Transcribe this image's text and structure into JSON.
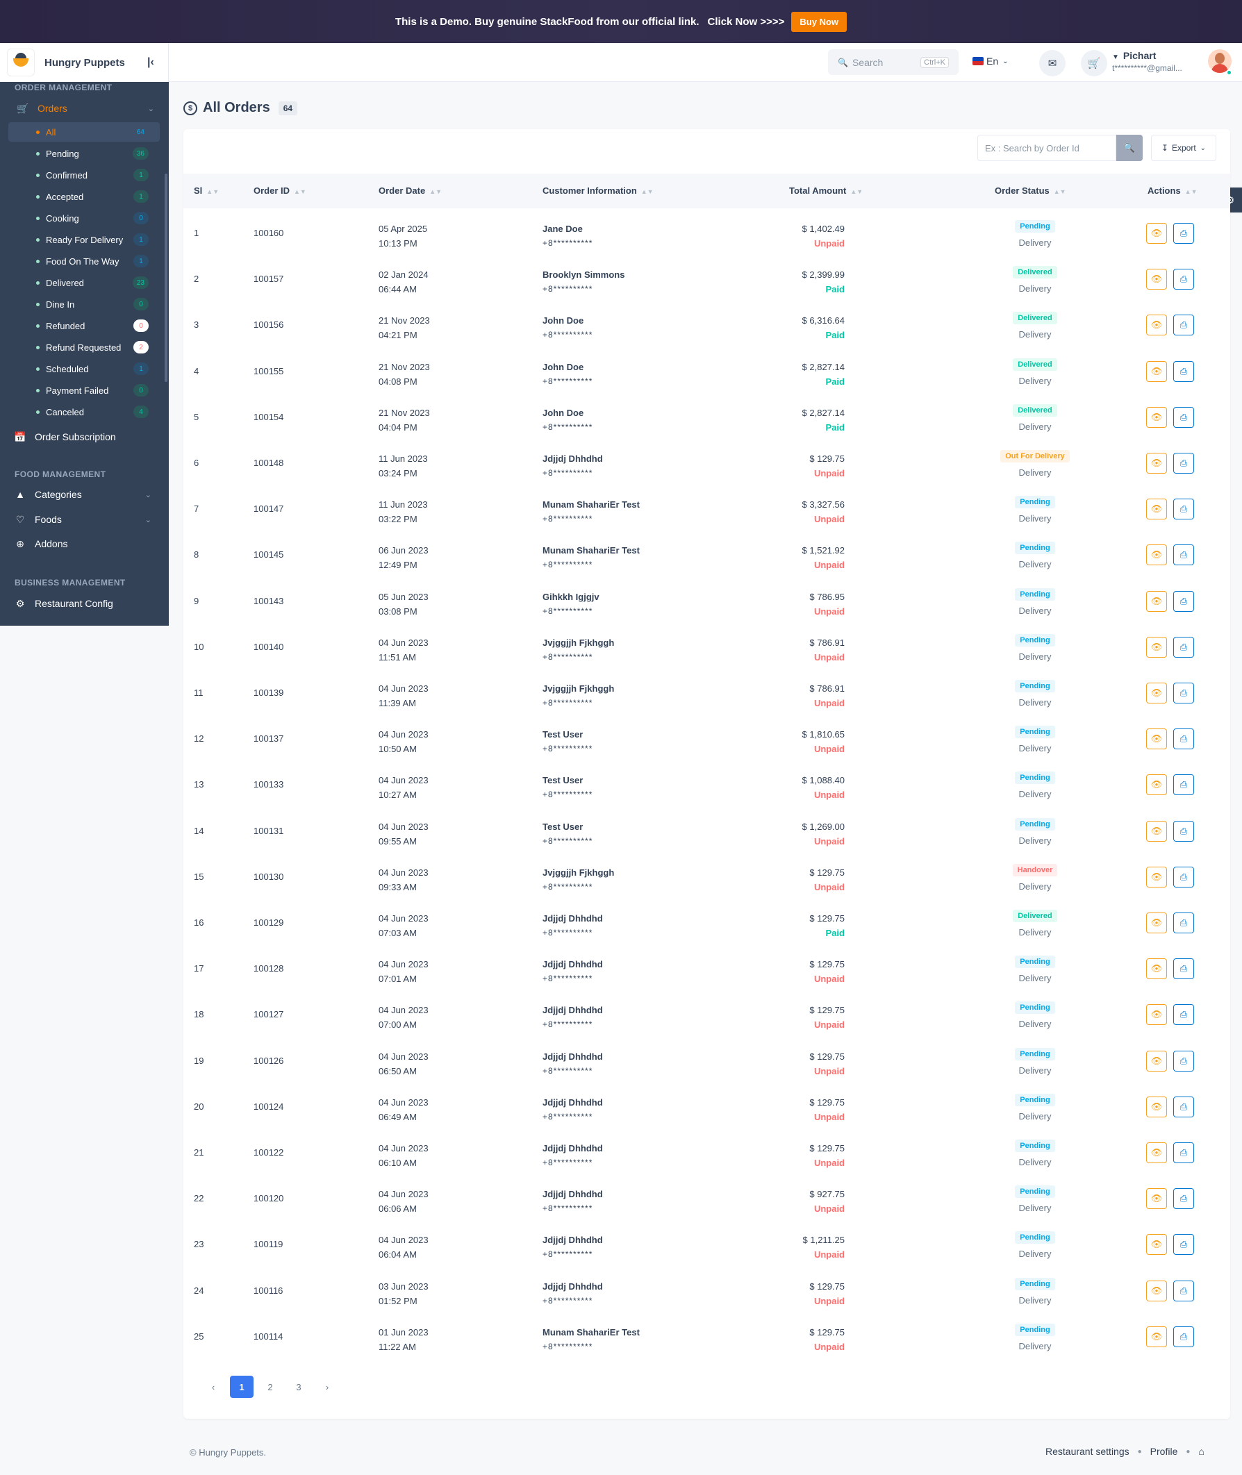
{
  "banner": {
    "message": "This is a Demo. Buy genuine StackFood from our official link.",
    "click_now": "Click Now >>>>",
    "buy_now": "Buy Now"
  },
  "brand": {
    "name": "Hungry Puppets"
  },
  "header": {
    "search_placeholder": "Search",
    "search_shortcut": "Ctrl+K",
    "language": "En",
    "user_name": "Pichart",
    "user_email": "t**********@gmail..."
  },
  "sidebar": {
    "order_management": "ORDER MANAGEMENT",
    "orders": "Orders",
    "subitems": [
      {
        "label": "All",
        "count": "64"
      },
      {
        "label": "Pending",
        "count": "36"
      },
      {
        "label": "Confirmed",
        "count": "1"
      },
      {
        "label": "Accepted",
        "count": "1"
      },
      {
        "label": "Cooking",
        "count": "0"
      },
      {
        "label": "Ready For Delivery",
        "count": "1"
      },
      {
        "label": "Food On The Way",
        "count": "1"
      },
      {
        "label": "Delivered",
        "count": "23"
      },
      {
        "label": "Dine In",
        "count": "0"
      },
      {
        "label": "Refunded",
        "count": "0"
      },
      {
        "label": "Refund Requested",
        "count": "2"
      },
      {
        "label": "Scheduled",
        "count": "1"
      },
      {
        "label": "Payment Failed",
        "count": "0"
      },
      {
        "label": "Canceled",
        "count": "4"
      }
    ],
    "order_subscription": "Order Subscription",
    "food_management": "FOOD MANAGEMENT",
    "categories": "Categories",
    "foods": "Foods",
    "addons": "Addons",
    "business_management": "BUSINESS MANAGEMENT",
    "restaurant_config": "Restaurant Config"
  },
  "page": {
    "title": "All Orders",
    "count": "64",
    "order_search_placeholder": "Ex : Search by Order Id",
    "export": "Export"
  },
  "table": {
    "headers": {
      "sl": "Sl",
      "order_id": "Order ID",
      "order_date": "Order Date",
      "customer": "Customer Information",
      "total": "Total Amount",
      "status": "Order Status",
      "actions": "Actions"
    },
    "rows": [
      {
        "sl": "1",
        "id": "100160",
        "date": "05 Apr 2025",
        "time": "10:13 PM",
        "name": "Jane Doe",
        "phone": "+8**********",
        "amount": "$ 1,402.49",
        "pay": "Unpaid",
        "status": "Pending",
        "type": "Delivery"
      },
      {
        "sl": "2",
        "id": "100157",
        "date": "02 Jan 2024",
        "time": "06:44 AM",
        "name": "Brooklyn Simmons",
        "phone": "+8**********",
        "amount": "$ 2,399.99",
        "pay": "Paid",
        "status": "Delivered",
        "type": "Delivery"
      },
      {
        "sl": "3",
        "id": "100156",
        "date": "21 Nov 2023",
        "time": "04:21 PM",
        "name": "John Doe",
        "phone": "+8**********",
        "amount": "$ 6,316.64",
        "pay": "Paid",
        "status": "Delivered",
        "type": "Delivery"
      },
      {
        "sl": "4",
        "id": "100155",
        "date": "21 Nov 2023",
        "time": "04:08 PM",
        "name": "John Doe",
        "phone": "+8**********",
        "amount": "$ 2,827.14",
        "pay": "Paid",
        "status": "Delivered",
        "type": "Delivery"
      },
      {
        "sl": "5",
        "id": "100154",
        "date": "21 Nov 2023",
        "time": "04:04 PM",
        "name": "John Doe",
        "phone": "+8**********",
        "amount": "$ 2,827.14",
        "pay": "Paid",
        "status": "Delivered",
        "type": "Delivery"
      },
      {
        "sl": "6",
        "id": "100148",
        "date": "11 Jun 2023",
        "time": "03:24 PM",
        "name": "Jdjjdj Dhhdhd",
        "phone": "+8**********",
        "amount": "$ 129.75",
        "pay": "Unpaid",
        "status": "Out For Delivery",
        "type": "Delivery"
      },
      {
        "sl": "7",
        "id": "100147",
        "date": "11 Jun 2023",
        "time": "03:22 PM",
        "name": "Munam ShahariEr Test",
        "phone": "+8**********",
        "amount": "$ 3,327.56",
        "pay": "Unpaid",
        "status": "Pending",
        "type": "Delivery"
      },
      {
        "sl": "8",
        "id": "100145",
        "date": "06 Jun 2023",
        "time": "12:49 PM",
        "name": "Munam ShahariEr Test",
        "phone": "+8**********",
        "amount": "$ 1,521.92",
        "pay": "Unpaid",
        "status": "Pending",
        "type": "Delivery"
      },
      {
        "sl": "9",
        "id": "100143",
        "date": "05 Jun 2023",
        "time": "03:08 PM",
        "name": "Gihkkh Igjgjv",
        "phone": "+8**********",
        "amount": "$ 786.95",
        "pay": "Unpaid",
        "status": "Pending",
        "type": "Delivery"
      },
      {
        "sl": "10",
        "id": "100140",
        "date": "04 Jun 2023",
        "time": "11:51 AM",
        "name": "Jvjggjjh Fjkhggh",
        "phone": "+8**********",
        "amount": "$ 786.91",
        "pay": "Unpaid",
        "status": "Pending",
        "type": "Delivery"
      },
      {
        "sl": "11",
        "id": "100139",
        "date": "04 Jun 2023",
        "time": "11:39 AM",
        "name": "Jvjggjjh Fjkhggh",
        "phone": "+8**********",
        "amount": "$ 786.91",
        "pay": "Unpaid",
        "status": "Pending",
        "type": "Delivery"
      },
      {
        "sl": "12",
        "id": "100137",
        "date": "04 Jun 2023",
        "time": "10:50 AM",
        "name": "Test User",
        "phone": "+8**********",
        "amount": "$ 1,810.65",
        "pay": "Unpaid",
        "status": "Pending",
        "type": "Delivery"
      },
      {
        "sl": "13",
        "id": "100133",
        "date": "04 Jun 2023",
        "time": "10:27 AM",
        "name": "Test User",
        "phone": "+8**********",
        "amount": "$ 1,088.40",
        "pay": "Unpaid",
        "status": "Pending",
        "type": "Delivery"
      },
      {
        "sl": "14",
        "id": "100131",
        "date": "04 Jun 2023",
        "time": "09:55 AM",
        "name": "Test User",
        "phone": "+8**********",
        "amount": "$ 1,269.00",
        "pay": "Unpaid",
        "status": "Pending",
        "type": "Delivery"
      },
      {
        "sl": "15",
        "id": "100130",
        "date": "04 Jun 2023",
        "time": "09:33 AM",
        "name": "Jvjggjjh Fjkhggh",
        "phone": "+8**********",
        "amount": "$ 129.75",
        "pay": "Unpaid",
        "status": "Handover",
        "type": "Delivery"
      },
      {
        "sl": "16",
        "id": "100129",
        "date": "04 Jun 2023",
        "time": "07:03 AM",
        "name": "Jdjjdj Dhhdhd",
        "phone": "+8**********",
        "amount": "$ 129.75",
        "pay": "Paid",
        "status": "Delivered",
        "type": "Delivery"
      },
      {
        "sl": "17",
        "id": "100128",
        "date": "04 Jun 2023",
        "time": "07:01 AM",
        "name": "Jdjjdj Dhhdhd",
        "phone": "+8**********",
        "amount": "$ 129.75",
        "pay": "Unpaid",
        "status": "Pending",
        "type": "Delivery"
      },
      {
        "sl": "18",
        "id": "100127",
        "date": "04 Jun 2023",
        "time": "07:00 AM",
        "name": "Jdjjdj Dhhdhd",
        "phone": "+8**********",
        "amount": "$ 129.75",
        "pay": "Unpaid",
        "status": "Pending",
        "type": "Delivery"
      },
      {
        "sl": "19",
        "id": "100126",
        "date": "04 Jun 2023",
        "time": "06:50 AM",
        "name": "Jdjjdj Dhhdhd",
        "phone": "+8**********",
        "amount": "$ 129.75",
        "pay": "Unpaid",
        "status": "Pending",
        "type": "Delivery"
      },
      {
        "sl": "20",
        "id": "100124",
        "date": "04 Jun 2023",
        "time": "06:49 AM",
        "name": "Jdjjdj Dhhdhd",
        "phone": "+8**********",
        "amount": "$ 129.75",
        "pay": "Unpaid",
        "status": "Pending",
        "type": "Delivery"
      },
      {
        "sl": "21",
        "id": "100122",
        "date": "04 Jun 2023",
        "time": "06:10 AM",
        "name": "Jdjjdj Dhhdhd",
        "phone": "+8**********",
        "amount": "$ 129.75",
        "pay": "Unpaid",
        "status": "Pending",
        "type": "Delivery"
      },
      {
        "sl": "22",
        "id": "100120",
        "date": "04 Jun 2023",
        "time": "06:06 AM",
        "name": "Jdjjdj Dhhdhd",
        "phone": "+8**********",
        "amount": "$ 927.75",
        "pay": "Unpaid",
        "status": "Pending",
        "type": "Delivery"
      },
      {
        "sl": "23",
        "id": "100119",
        "date": "04 Jun 2023",
        "time": "06:04 AM",
        "name": "Jdjjdj Dhhdhd",
        "phone": "+8**********",
        "amount": "$ 1,211.25",
        "pay": "Unpaid",
        "status": "Pending",
        "type": "Delivery"
      },
      {
        "sl": "24",
        "id": "100116",
        "date": "03 Jun 2023",
        "time": "01:52 PM",
        "name": "Jdjjdj Dhhdhd",
        "phone": "+8**********",
        "amount": "$ 129.75",
        "pay": "Unpaid",
        "status": "Pending",
        "type": "Delivery"
      },
      {
        "sl": "25",
        "id": "100114",
        "date": "01 Jun 2023",
        "time": "11:22 AM",
        "name": "Munam ShahariEr Test",
        "phone": "+8**********",
        "amount": "$ 129.75",
        "pay": "Unpaid",
        "status": "Pending",
        "type": "Delivery"
      }
    ]
  },
  "pagination": {
    "prev": "‹",
    "pages": [
      "1",
      "2",
      "3"
    ],
    "next": "›",
    "current": "1"
  },
  "footer": {
    "copyright": "© Hungry Puppets.",
    "restaurant_settings": "Restaurant settings",
    "profile": "Profile"
  }
}
